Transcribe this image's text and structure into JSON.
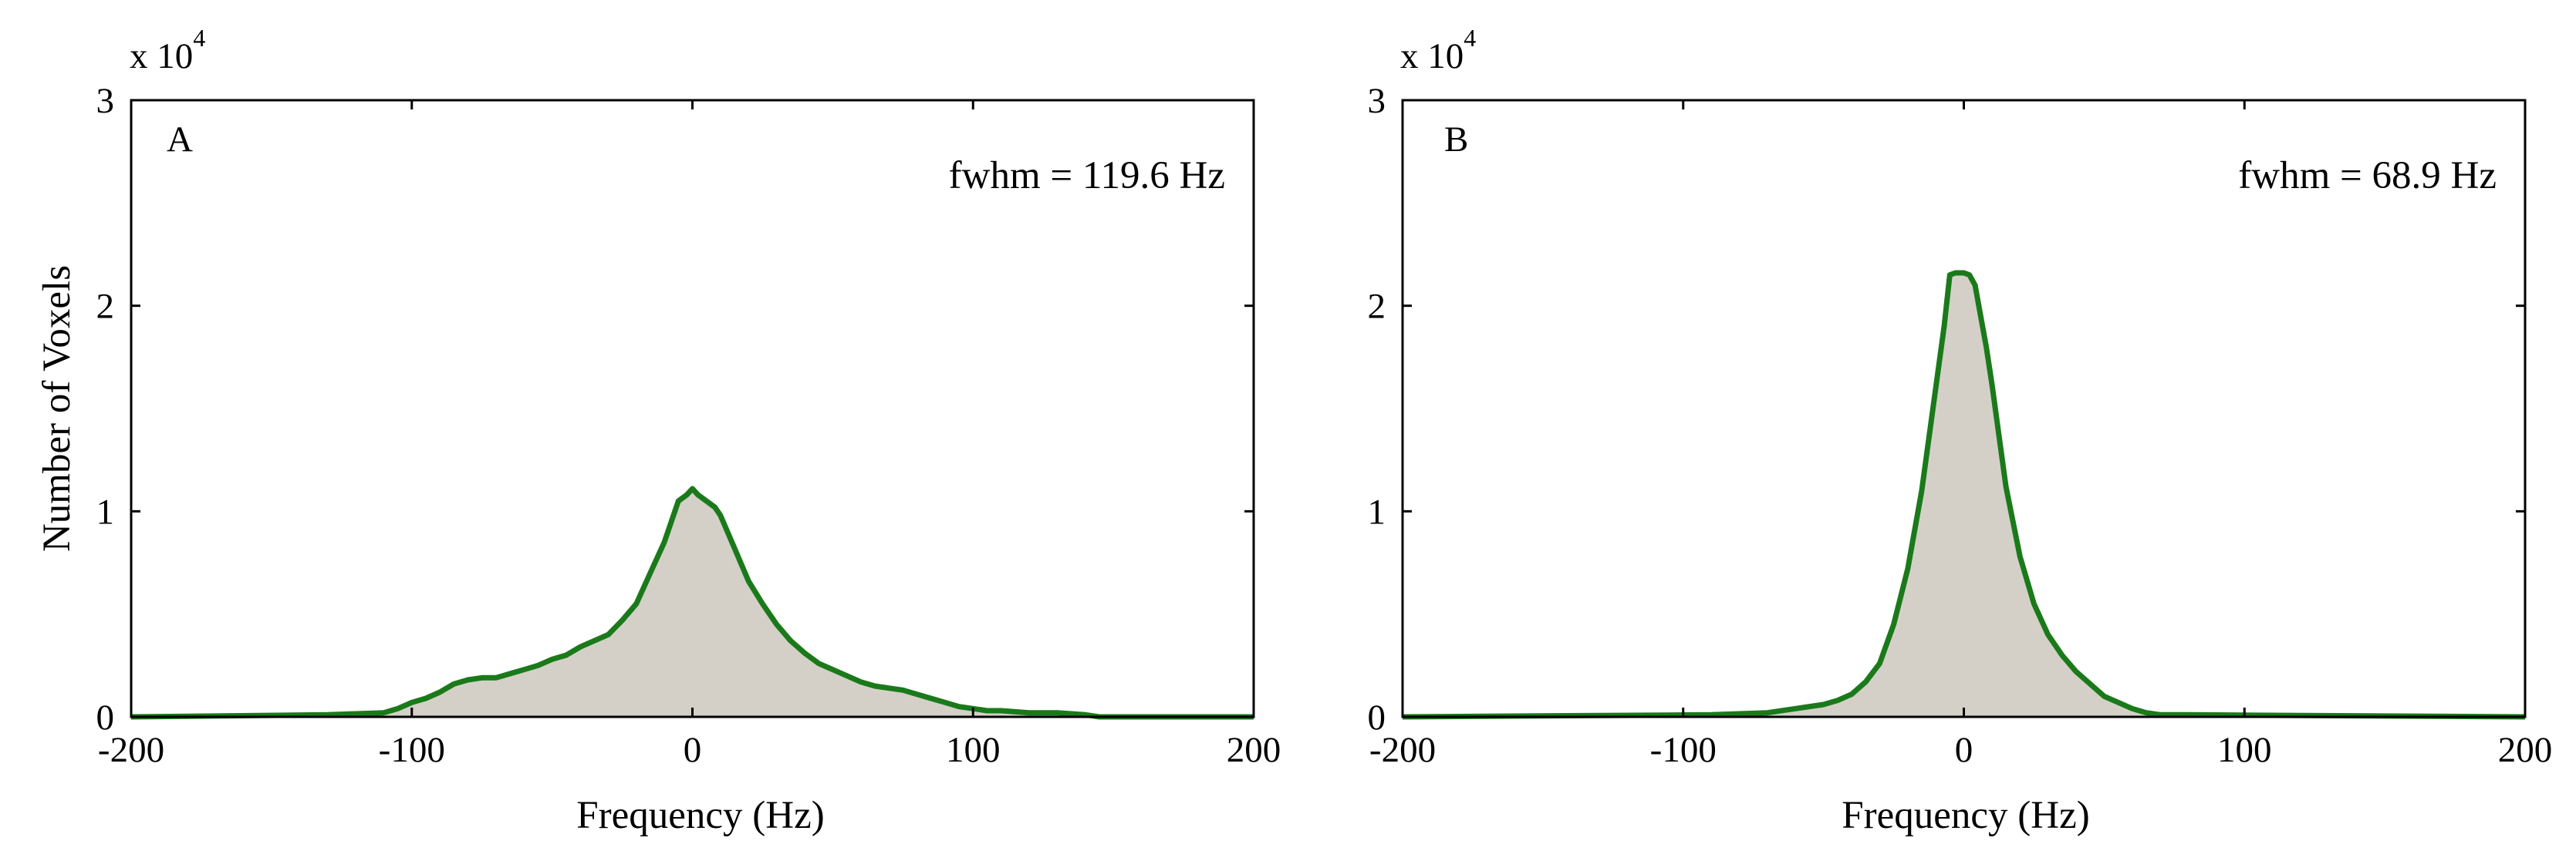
{
  "chart_data": [
    {
      "type": "area",
      "panel_label": "A",
      "annotation": "fwhm = 119.6 Hz",
      "xlabel": "Frequency (Hz)",
      "ylabel": "Number of Voxels",
      "y_multiplier": "x 10",
      "y_multiplier_exp": "4",
      "xlim": [
        -200,
        200
      ],
      "ylim": [
        0,
        3
      ],
      "xticks": [
        -200,
        -100,
        0,
        100,
        200
      ],
      "yticks": [
        0,
        1,
        2,
        3
      ],
      "series": [
        {
          "x": [
            -200,
            -130,
            -110,
            -105,
            -100,
            -95,
            -90,
            -85,
            -80,
            -75,
            -70,
            -65,
            -60,
            -55,
            -50,
            -45,
            -40,
            -35,
            -30,
            -25,
            -20,
            -15,
            -10,
            -5,
            -2,
            0,
            2,
            5,
            8,
            10,
            15,
            20,
            25,
            30,
            35,
            40,
            45,
            50,
            55,
            60,
            65,
            70,
            75,
            80,
            85,
            90,
            95,
            100,
            105,
            110,
            120,
            130,
            140,
            145,
            200
          ],
          "y": [
            0,
            0.01,
            0.02,
            0.04,
            0.07,
            0.09,
            0.12,
            0.16,
            0.18,
            0.19,
            0.19,
            0.21,
            0.23,
            0.25,
            0.28,
            0.3,
            0.34,
            0.37,
            0.4,
            0.47,
            0.55,
            0.7,
            0.85,
            1.05,
            1.08,
            1.11,
            1.08,
            1.05,
            1.02,
            0.98,
            0.82,
            0.66,
            0.55,
            0.45,
            0.37,
            0.31,
            0.26,
            0.23,
            0.2,
            0.17,
            0.15,
            0.14,
            0.13,
            0.11,
            0.09,
            0.07,
            0.05,
            0.04,
            0.03,
            0.03,
            0.02,
            0.02,
            0.01,
            0,
            0
          ]
        }
      ],
      "line_color": "#1a7a1a",
      "fill_color": "#d4d0c8",
      "grid": false
    },
    {
      "type": "area",
      "panel_label": "B",
      "annotation": "fwhm = 68.9 Hz",
      "xlabel": "Frequency (Hz)",
      "ylabel": "",
      "y_multiplier": "x 10",
      "y_multiplier_exp": "4",
      "xlim": [
        -200,
        200
      ],
      "ylim": [
        0,
        3
      ],
      "xticks": [
        -200,
        -100,
        0,
        100,
        200
      ],
      "yticks": [
        0,
        1,
        2,
        3
      ],
      "series": [
        {
          "x": [
            -200,
            -90,
            -70,
            -60,
            -50,
            -45,
            -40,
            -35,
            -30,
            -25,
            -20,
            -15,
            -10,
            -7,
            -5,
            -3,
            0,
            2,
            4,
            6,
            8,
            10,
            15,
            20,
            25,
            30,
            35,
            40,
            45,
            50,
            55,
            60,
            65,
            70,
            80,
            200
          ],
          "y": [
            0,
            0.01,
            0.02,
            0.04,
            0.06,
            0.08,
            0.11,
            0.17,
            0.26,
            0.45,
            0.72,
            1.1,
            1.6,
            1.9,
            2.15,
            2.16,
            2.16,
            2.15,
            2.1,
            1.95,
            1.8,
            1.62,
            1.12,
            0.78,
            0.55,
            0.4,
            0.3,
            0.22,
            0.16,
            0.1,
            0.07,
            0.04,
            0.02,
            0.01,
            0.01,
            0
          ]
        }
      ],
      "line_color": "#1a7a1a",
      "fill_color": "#d4d0c8",
      "grid": false
    }
  ]
}
